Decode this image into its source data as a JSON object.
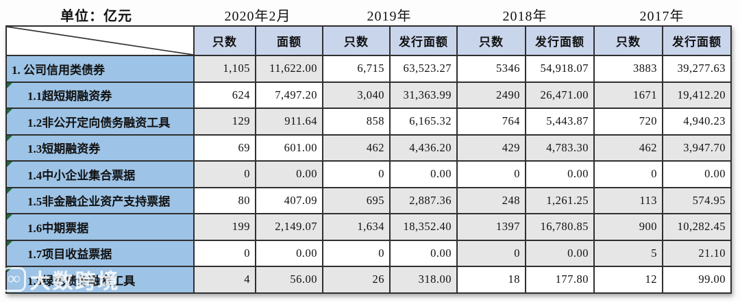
{
  "unit_label": "单位：亿元",
  "watermark": {
    "logo_glyph": "∞",
    "brand": "大数跨境"
  },
  "colors": {
    "label_blue": "#9DC3E6",
    "header_blue": "#C9D5EB",
    "shade_gray": "#E7E6E6",
    "cell_white": "#FFFFFF",
    "border_dark": "#2F2F2F",
    "indicator_green": "#1E6B38"
  },
  "table": {
    "year_groups": [
      {
        "label": "2020年2月",
        "col_headers": [
          "只数",
          "面额"
        ]
      },
      {
        "label": "2019年",
        "col_headers": [
          "只数",
          "发行面额"
        ]
      },
      {
        "label": "2018年",
        "col_headers": [
          "只数",
          "发行面额"
        ]
      },
      {
        "label": "2017年",
        "col_headers": [
          "只数",
          "发行面额"
        ]
      }
    ],
    "rows": [
      {
        "label": "1. 公司信用类债券",
        "indent": false,
        "marker": false,
        "values": [
          "1,105",
          "11,622.00",
          "6,715",
          "63,523.27",
          "5346",
          "54,918.07",
          "3883",
          "39,277.63"
        ],
        "shades": [
          1,
          0,
          0,
          0
        ]
      },
      {
        "label": "1.1超短期融资券",
        "indent": true,
        "marker": true,
        "values": [
          "624",
          "7,497.20",
          "3,040",
          "31,363.99",
          "2490",
          "26,471.00",
          "1671",
          "19,412.20"
        ],
        "shades": [
          0,
          1,
          1,
          1
        ]
      },
      {
        "label": "1.2非公开定向债务融资工具",
        "indent": true,
        "marker": true,
        "values": [
          "129",
          "911.64",
          "858",
          "6,165.32",
          "764",
          "5,443.87",
          "720",
          "4,940.23"
        ],
        "shades": [
          1,
          0,
          0,
          0
        ]
      },
      {
        "label": "1.3短期融资券",
        "indent": true,
        "marker": true,
        "values": [
          "69",
          "601.00",
          "462",
          "4,436.20",
          "429",
          "4,783.30",
          "462",
          "3,947.70"
        ],
        "shades": [
          0,
          1,
          1,
          1
        ]
      },
      {
        "label": "1.4中小企业集合票据",
        "indent": true,
        "marker": true,
        "values": [
          "0",
          "0.00",
          "0",
          "0.00",
          "0",
          "0.00",
          "0",
          "0.00"
        ],
        "shades": [
          1,
          0,
          0,
          0
        ]
      },
      {
        "label": "1.5非金融企业资产支持票据",
        "indent": true,
        "marker": true,
        "values": [
          "80",
          "407.09",
          "695",
          "2,887.36",
          "248",
          "1,261.25",
          "113",
          "574.95"
        ],
        "shades": [
          0,
          1,
          1,
          1
        ]
      },
      {
        "label": "1.6中期票据",
        "indent": true,
        "marker": true,
        "values": [
          "199",
          "2,149.07",
          "1,634",
          "18,352.40",
          "1397",
          "16,780.85",
          "900",
          "10,282.45"
        ],
        "shades": [
          1,
          1,
          1,
          1
        ]
      },
      {
        "label": "1.7项目收益票据",
        "indent": true,
        "marker": true,
        "values": [
          "0",
          "0.00",
          "0",
          "0.00",
          "0",
          "0.00",
          "5",
          "21.10"
        ],
        "shades": [
          0,
          0,
          1,
          1
        ]
      },
      {
        "label": "1.8绿色债务融资工具",
        "indent": true,
        "marker": true,
        "values": [
          "4",
          "56.00",
          "26",
          "318.00",
          "18",
          "177.80",
          "12",
          "99.00"
        ],
        "shades": [
          1,
          1,
          0,
          0
        ]
      }
    ]
  }
}
